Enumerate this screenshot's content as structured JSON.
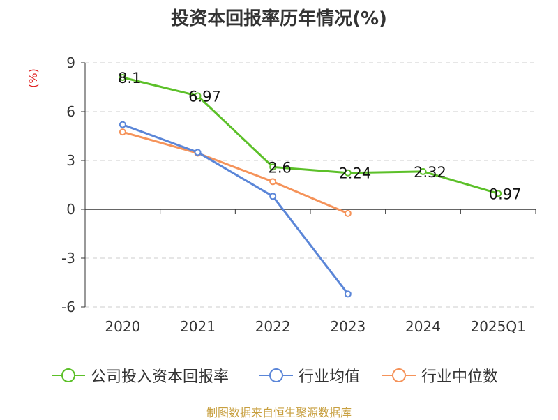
{
  "chart_data": {
    "type": "line",
    "title": "投资本回报率历年情况(%)",
    "unit_label": "(%)",
    "categories": [
      "2020",
      "2021",
      "2022",
      "2023",
      "2024",
      "2025Q1"
    ],
    "y_ticks": [
      "9",
      "6",
      "3",
      "0",
      "-3",
      "-6"
    ],
    "ylim": [
      -6,
      9
    ],
    "grid": true,
    "legend_position": "bottom",
    "series": [
      {
        "name": "公司投入资本回报率",
        "color": "#5cc029",
        "values": [
          8.1,
          6.97,
          2.6,
          2.24,
          2.32,
          0.97
        ],
        "labels": [
          "8.1",
          "6.97",
          "2.6",
          "2.24",
          "2.32",
          "0.97"
        ]
      },
      {
        "name": "行业均值",
        "color": "#5b86d8",
        "values": [
          5.2,
          3.5,
          0.8,
          -5.2,
          null,
          null
        ]
      },
      {
        "name": "行业中位数",
        "color": "#f5935a",
        "values": [
          4.75,
          3.45,
          1.7,
          -0.25,
          null,
          null
        ]
      }
    ],
    "source": "制图数据来自恒生聚源数据库"
  }
}
